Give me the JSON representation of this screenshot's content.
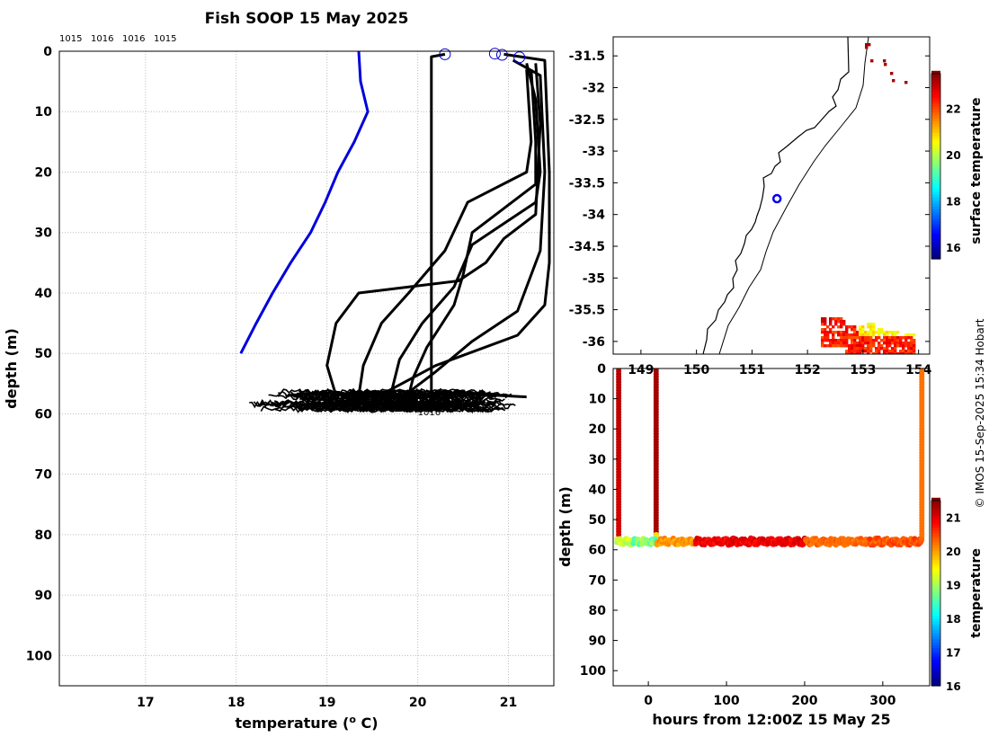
{
  "chart_data": [
    {
      "type": "line",
      "title": "Fish SOOP 15 May 2025",
      "xlabel_main": "temperature (",
      "xlabel_sup": "o",
      "xlabel_end": " C)",
      "ylabel": "depth (m)",
      "xlim": [
        16.05,
        21.5
      ],
      "ylim": [
        0,
        105
      ],
      "y_reversed": true,
      "grid": true,
      "x_ticks": [
        "17",
        "18",
        "19",
        "20",
        "21"
      ],
      "y_ticks": [
        "0",
        "10",
        "20",
        "30",
        "40",
        "50",
        "60",
        "70",
        "80",
        "90",
        "100"
      ],
      "top_labels": [
        "1015",
        "1016",
        "1016",
        "1015"
      ],
      "series": [
        {
          "color": "#0000dd",
          "points": [
            [
              19.35,
              0
            ],
            [
              19.37,
              5
            ],
            [
              19.45,
              10
            ],
            [
              19.3,
              15
            ],
            [
              19.12,
              20
            ],
            [
              18.98,
              25
            ],
            [
              18.82,
              30
            ],
            [
              18.6,
              35
            ],
            [
              18.4,
              40
            ],
            [
              18.22,
              45
            ],
            [
              18.05,
              50
            ]
          ]
        },
        {
          "color": "#000000",
          "points": [
            [
              20.3,
              0.5
            ],
            [
              20.15,
              0.9
            ],
            [
              20.15,
              57
            ],
            [
              20.3,
              56.5
            ],
            [
              21.2,
              57.2
            ]
          ]
        },
        {
          "color": "#000000",
          "points": [
            [
              20.95,
              0.5
            ],
            [
              21.4,
              1.5
            ],
            [
              21.45,
              20
            ],
            [
              21.45,
              35
            ],
            [
              21.4,
              42
            ],
            [
              21.1,
              47
            ],
            [
              20.2,
              52
            ],
            [
              19.6,
              56.8
            ]
          ]
        },
        {
          "color": "#000000",
          "points": [
            [
              21.05,
              1.5
            ],
            [
              21.35,
              4
            ],
            [
              21.4,
              20
            ],
            [
              21.35,
              33
            ],
            [
              21.1,
              43
            ],
            [
              20.6,
              48
            ],
            [
              20.2,
              53
            ],
            [
              19.85,
              57
            ]
          ]
        },
        {
          "color": "#000000",
          "points": [
            [
              21.2,
              2
            ],
            [
              21.3,
              8
            ],
            [
              21.35,
              20
            ],
            [
              21.3,
              25
            ],
            [
              20.6,
              32
            ],
            [
              20.4,
              39
            ],
            [
              20.05,
              45
            ],
            [
              19.8,
              51
            ],
            [
              19.7,
              57
            ]
          ]
        },
        {
          "color": "#000000",
          "points": [
            [
              21.25,
              3
            ],
            [
              21.3,
              15
            ],
            [
              21.3,
              22
            ],
            [
              20.6,
              30
            ],
            [
              20.5,
              37
            ],
            [
              20.4,
              42
            ],
            [
              20.1,
              49
            ],
            [
              19.95,
              54
            ],
            [
              19.9,
              57
            ]
          ]
        },
        {
          "color": "#000000",
          "points": [
            [
              21.2,
              3
            ],
            [
              21.25,
              15
            ],
            [
              21.2,
              20
            ],
            [
              20.55,
              25
            ],
            [
              20.3,
              33
            ],
            [
              19.9,
              40
            ],
            [
              19.6,
              45
            ],
            [
              19.4,
              52
            ],
            [
              19.35,
              57
            ]
          ]
        },
        {
          "color": "#000000",
          "points": [
            [
              21.3,
              2
            ],
            [
              21.35,
              12
            ],
            [
              21.3,
              27
            ],
            [
              20.95,
              31
            ],
            [
              20.75,
              35
            ],
            [
              20.45,
              38
            ],
            [
              19.35,
              40
            ],
            [
              19.1,
              45
            ],
            [
              19.0,
              52
            ],
            [
              19.1,
              57
            ]
          ]
        }
      ],
      "markers": [
        [
          20.3,
          0.5
        ],
        [
          20.85,
          0.4
        ],
        [
          20.93,
          0.6
        ],
        [
          21.12,
          1.0
        ]
      ],
      "bottom_cluster_labels": [
        "1016",
        "1016"
      ]
    },
    {
      "type": "heatmap",
      "ylabel_colorbar": "surface temperature",
      "xlim": [
        148.5,
        154.2
      ],
      "ylim": [
        -36.2,
        -31.2
      ],
      "x_ticks": [
        "149",
        "150",
        "151",
        "152",
        "153",
        "154"
      ],
      "y_ticks": [
        "-31.5",
        "-32",
        "-32.5",
        "-33",
        "-33.5",
        "-34",
        "-34.5",
        "-35",
        "-35.5",
        "-36"
      ],
      "colorbar_range": [
        15.5,
        23.5
      ],
      "colorbar_ticks": [
        "16",
        "18",
        "20",
        "22"
      ],
      "position_marker": [
        151.45,
        -33.75
      ]
    },
    {
      "type": "scatter",
      "xlabel": "hours from 12:00Z 15 May 25",
      "ylabel": "depth (m)",
      "ylabel_colorbar": "temperature",
      "xlim": [
        -45,
        360
      ],
      "ylim": [
        0,
        105
      ],
      "y_reversed": true,
      "x_ticks": [
        "0",
        "100",
        "200",
        "300"
      ],
      "y_ticks": [
        "0",
        "10",
        "20",
        "30",
        "40",
        "50",
        "60",
        "70",
        "80",
        "90",
        "100"
      ],
      "colorbar_range": [
        16,
        21.5
      ],
      "colorbar_ticks": [
        "16",
        "17",
        "18",
        "19",
        "20",
        "21"
      ]
    }
  ],
  "footer": "© IMOS 15-Sep-2025 15:34 Hobart"
}
